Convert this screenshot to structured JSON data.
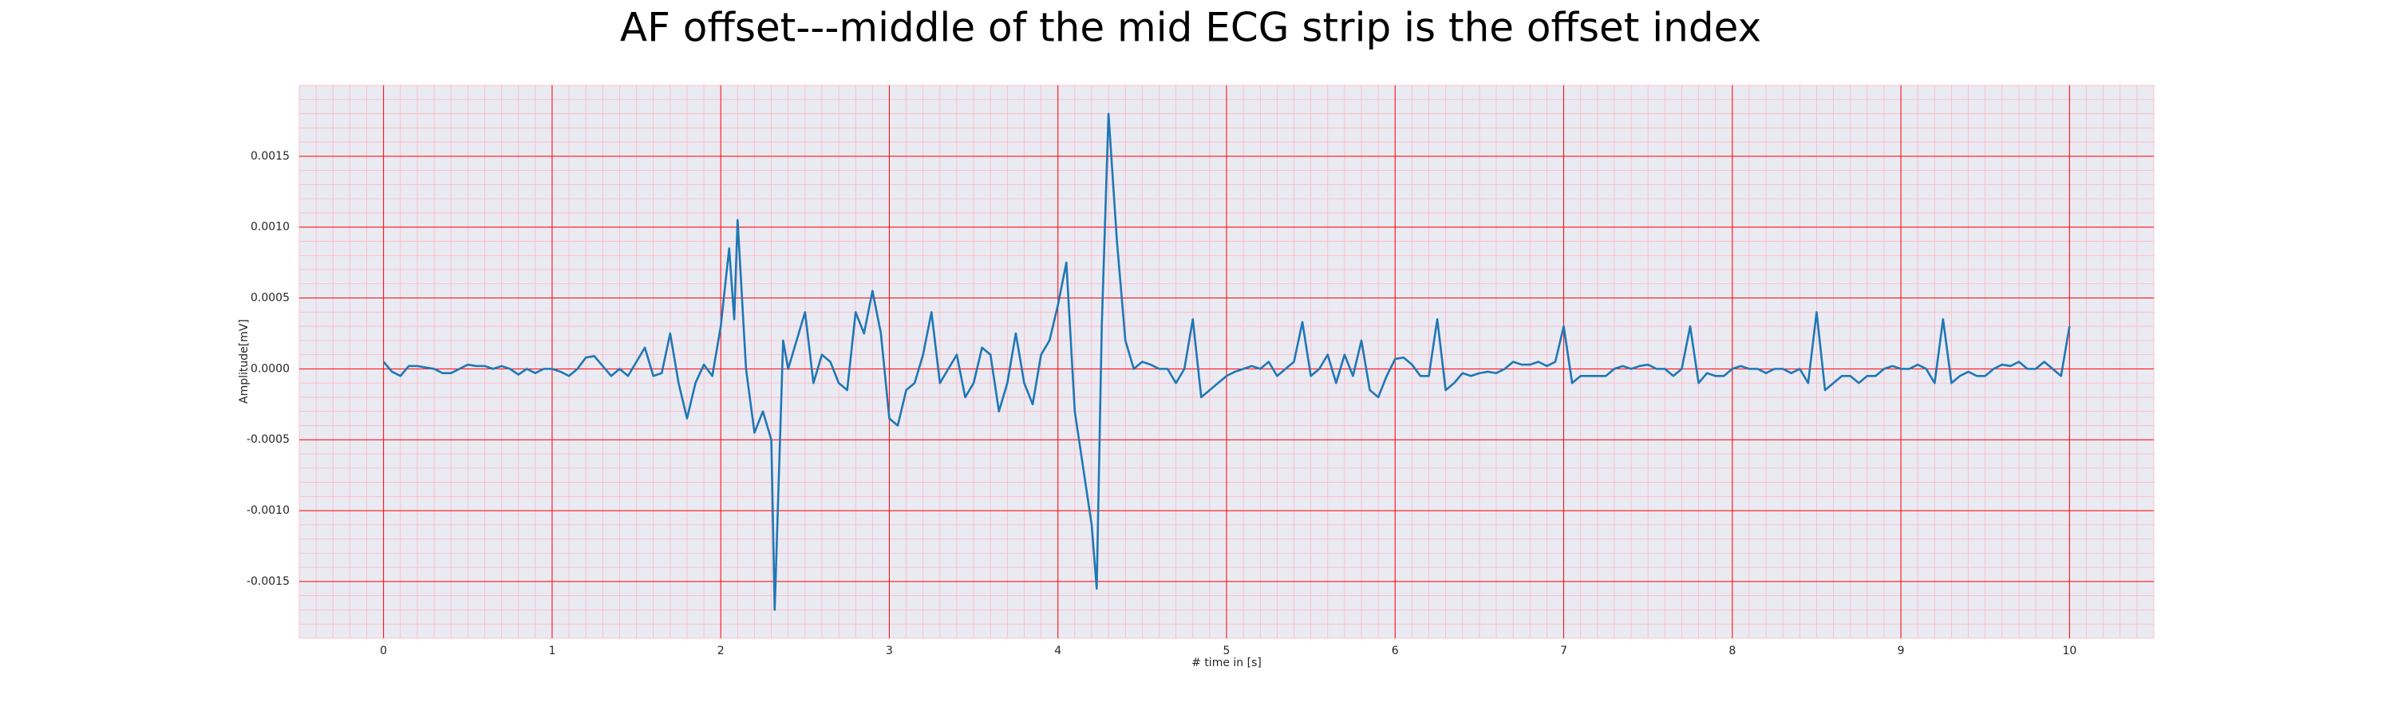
{
  "chart_data": {
    "type": "line",
    "title": "AF offset---middle of the mid ECG strip is the offset index",
    "xlabel": "# time in [s]",
    "ylabel": "Amplitude[mV]",
    "color": "#1f77b4",
    "background": "#eaeaf2",
    "grid": true,
    "grid_color": "#ff0000",
    "minor_grid": {
      "x": 0.1,
      "y": 0.0001,
      "color": "#ffb6c1"
    },
    "xlim": [
      -0.5,
      10.5
    ],
    "ylim": [
      -0.0019,
      0.002
    ],
    "xticks": [
      0,
      1,
      2,
      3,
      4,
      5,
      6,
      7,
      8,
      9,
      10
    ],
    "yticks": [
      -0.0015,
      {
        "value": -0.001,
        "label": "-0.0010"
      },
      -0.0005,
      {
        "value": 0,
        "label": "0.0000"
      },
      0.0005,
      {
        "value": 0.001,
        "label": "0.0010"
      },
      0.0015
    ],
    "x": [
      0,
      0.05,
      0.1,
      0.15,
      0.2,
      0.25,
      0.3,
      0.35,
      0.4,
      0.45,
      0.5,
      0.55,
      0.6,
      0.65,
      0.7,
      0.75,
      0.8,
      0.85,
      0.9,
      0.95,
      1.0,
      1.05,
      1.1,
      1.15,
      1.2,
      1.25,
      1.3,
      1.35,
      1.4,
      1.45,
      1.5,
      1.55,
      1.6,
      1.65,
      1.7,
      1.75,
      1.8,
      1.85,
      1.9,
      1.95,
      2.0,
      2.05,
      2.08,
      2.1,
      2.15,
      2.2,
      2.25,
      2.3,
      2.32,
      2.37,
      2.4,
      2.45,
      2.5,
      2.55,
      2.6,
      2.65,
      2.7,
      2.75,
      2.8,
      2.85,
      2.9,
      2.95,
      3.0,
      3.05,
      3.1,
      3.15,
      3.2,
      3.25,
      3.3,
      3.35,
      3.4,
      3.45,
      3.5,
      3.55,
      3.6,
      3.65,
      3.7,
      3.75,
      3.8,
      3.85,
      3.9,
      3.95,
      4.0,
      4.05,
      4.1,
      4.15,
      4.2,
      4.23,
      4.26,
      4.3,
      4.35,
      4.4,
      4.45,
      4.5,
      4.55,
      4.6,
      4.65,
      4.7,
      4.75,
      4.8,
      4.85,
      4.9,
      4.95,
      5.0,
      5.05,
      5.1,
      5.15,
      5.2,
      5.25,
      5.3,
      5.35,
      5.4,
      5.45,
      5.5,
      5.55,
      5.6,
      5.65,
      5.7,
      5.75,
      5.8,
      5.85,
      5.9,
      5.95,
      6.0,
      6.05,
      6.1,
      6.15,
      6.2,
      6.25,
      6.3,
      6.35,
      6.4,
      6.45,
      6.5,
      6.55,
      6.6,
      6.65,
      6.7,
      6.75,
      6.8,
      6.85,
      6.9,
      6.95,
      7.0,
      7.05,
      7.1,
      7.15,
      7.2,
      7.25,
      7.3,
      7.35,
      7.4,
      7.45,
      7.5,
      7.55,
      7.6,
      7.65,
      7.7,
      7.75,
      7.8,
      7.85,
      7.9,
      7.95,
      8.0,
      8.05,
      8.1,
      8.15,
      8.2,
      8.25,
      8.3,
      8.35,
      8.4,
      8.45,
      8.5,
      8.55,
      8.6,
      8.65,
      8.7,
      8.75,
      8.8,
      8.85,
      8.9,
      8.95,
      9.0,
      9.05,
      9.1,
      9.15,
      9.2,
      9.25,
      9.3,
      9.35,
      9.4,
      9.45,
      9.5,
      9.55,
      9.6,
      9.65,
      9.7,
      9.75,
      9.8,
      9.85,
      9.9,
      9.95,
      10.0
    ],
    "values": [
      5e-05,
      -2e-05,
      -5e-05,
      2e-05,
      2e-05,
      1e-05,
      0.0,
      -3e-05,
      -3e-05,
      0.0,
      3e-05,
      2e-05,
      2e-05,
      0.0,
      2e-05,
      0.0,
      -4e-05,
      0.0,
      -3e-05,
      0.0,
      0.0,
      -2e-05,
      -5e-05,
      0.0,
      8e-05,
      9e-05,
      2e-05,
      -5e-05,
      0.0,
      -5e-05,
      5e-05,
      0.00015,
      -5e-05,
      -3e-05,
      0.00025,
      -0.0001,
      -0.00035,
      -0.0001,
      3e-05,
      -5e-05,
      0.0003,
      0.00085,
      0.00035,
      0.00105,
      0.0,
      -0.00045,
      -0.0003,
      -0.0005,
      -0.0017,
      0.0002,
      0.0,
      0.0002,
      0.0004,
      -0.0001,
      0.0001,
      5e-05,
      -0.0001,
      -0.00015,
      0.0004,
      0.00025,
      0.00055,
      0.00025,
      -0.00035,
      -0.0004,
      -0.00015,
      -0.0001,
      0.0001,
      0.0004,
      -0.0001,
      0.0,
      0.0001,
      -0.0002,
      -0.0001,
      0.00015,
      0.0001,
      -0.0003,
      -0.0001,
      0.00025,
      -0.0001,
      -0.00025,
      0.0001,
      0.0002,
      0.00045,
      0.00075,
      -0.0003,
      -0.0007,
      -0.0011,
      -0.00155,
      0.0003,
      0.0018,
      0.0009,
      0.0002,
      0.0,
      5e-05,
      3e-05,
      0.0,
      0.0,
      -0.0001,
      0.0,
      0.00035,
      -0.0002,
      -0.00015,
      -0.0001,
      -5e-05,
      -2e-05,
      0.0,
      2e-05,
      0.0,
      5e-05,
      -5e-05,
      0.0,
      5e-05,
      0.00033,
      -5e-05,
      0.0,
      0.0001,
      -0.0001,
      0.0001,
      -5e-05,
      0.0002,
      -0.00015,
      -0.0002,
      -5e-05,
      7e-05,
      8e-05,
      3e-05,
      -5e-05,
      -5e-05,
      0.00035,
      -0.00015,
      -0.0001,
      -3e-05,
      -5e-05,
      -3e-05,
      -2e-05,
      -3e-05,
      0.0,
      5e-05,
      3e-05,
      3e-05,
      5e-05,
      2e-05,
      5e-05,
      0.0003,
      -0.0001,
      -5e-05,
      -5e-05,
      -5e-05,
      -5e-05,
      0.0,
      2e-05,
      0.0,
      2e-05,
      3e-05,
      0.0,
      0.0,
      -5e-05,
      0.0,
      0.0003,
      -0.0001,
      -3e-05,
      -5e-05,
      -5e-05,
      0.0,
      2e-05,
      0.0,
      0.0,
      -3e-05,
      0.0,
      0.0,
      -3e-05,
      0.0,
      -0.0001,
      0.0004,
      -0.00015,
      -0.0001,
      -5e-05,
      -5e-05,
      -0.0001,
      -5e-05,
      -5e-05,
      0.0,
      2e-05,
      0.0,
      0.0,
      3e-05,
      0.0,
      -0.0001,
      0.00035,
      -0.0001,
      -5e-05,
      -2e-05,
      -5e-05,
      -5e-05,
      0.0,
      3e-05,
      2e-05,
      5e-05,
      0.0,
      0.0,
      5e-05,
      0.0,
      -5e-05,
      0.0003
    ]
  }
}
